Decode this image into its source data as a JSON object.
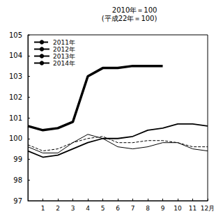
{
  "chart_data": {
    "type": "line",
    "title": "2010年＝100",
    "subtitle": "(平成22年＝100)",
    "categories": [
      null,
      "1",
      "2",
      "3",
      "4",
      "5",
      "6",
      "7",
      "8",
      "9",
      "10",
      "11",
      "12月"
    ],
    "series": [
      {
        "name": "2011年",
        "color": "#000000",
        "line_style": "dashed",
        "values": [
          99.7,
          99.4,
          99.5,
          99.8,
          100.0,
          100.1,
          99.8,
          99.8,
          99.9,
          99.9,
          99.8,
          99.6,
          99.6
        ]
      },
      {
        "name": "2012年",
        "color": "#000000",
        "line_style": "solid",
        "values": [
          99.6,
          99.3,
          99.3,
          99.8,
          100.2,
          100.0,
          99.6,
          99.5,
          99.6,
          99.8,
          99.8,
          99.5,
          99.4
        ]
      },
      {
        "name": "2013年",
        "color": "#000000",
        "line_style": "solid",
        "values": [
          99.4,
          99.1,
          99.2,
          99.5,
          99.8,
          100.0,
          100.0,
          100.1,
          100.4,
          100.5,
          100.7,
          100.7,
          100.6
        ]
      },
      {
        "name": "2014年",
        "color": "#000000",
        "line_style": "solid",
        "values": [
          100.6,
          100.4,
          100.5,
          100.8,
          103.0,
          103.4,
          103.4,
          103.5,
          103.5,
          103.5,
          null,
          null,
          null
        ]
      }
    ],
    "ylim": [
      97,
      105
    ],
    "yticks": [
      97,
      98,
      99,
      100,
      101,
      102,
      103,
      104,
      105
    ],
    "grid": false,
    "legend": "upper left"
  }
}
